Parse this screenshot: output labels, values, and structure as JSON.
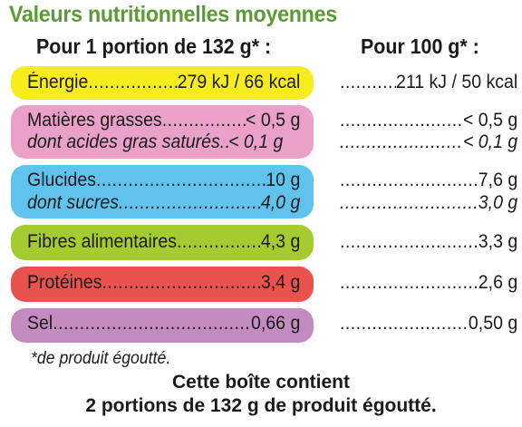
{
  "title": "Valeurs nutritionnelles moyennes",
  "column_headers": {
    "portion": "Pour 1 portion de 132 g* :",
    "per100": "Pour 100 g* :"
  },
  "rows": [
    {
      "label": "Énergie",
      "portion": "279 kJ / 66 kcal",
      "per100": "211 kJ / 50 kcal",
      "color": "#f7ed1c"
    },
    {
      "label": "Matières grasses",
      "portion": "< 0,5 g",
      "per100": "< 0,5 g",
      "color": "#eaa0c8",
      "sub": {
        "label": "dont acides gras saturés",
        "portion": "< 0,1 g",
        "per100": "< 0,1 g"
      }
    },
    {
      "label": "Glucides",
      "portion": "10 g",
      "per100": "7,6 g",
      "color": "#5fc3ee",
      "sub": {
        "label": "dont sucres",
        "portion": "4,0 g",
        "per100": "3,0 g"
      }
    },
    {
      "label": "Fibres alimentaires",
      "portion": "4,3 g",
      "per100": "3,3 g",
      "color": "#a6cb2e"
    },
    {
      "label": "Protéines",
      "portion": "3,4 g",
      "per100": "2,6 g",
      "color": "#e9534d"
    },
    {
      "label": "Sel",
      "portion": "0,66 g",
      "per100": "0,50 g",
      "color": "#c48bc0"
    }
  ],
  "footnote": "*de produit égoutté.",
  "box_contents": {
    "line1": "Cette boîte contient",
    "line2": "2 portions de 132 g de produit égoutté."
  }
}
